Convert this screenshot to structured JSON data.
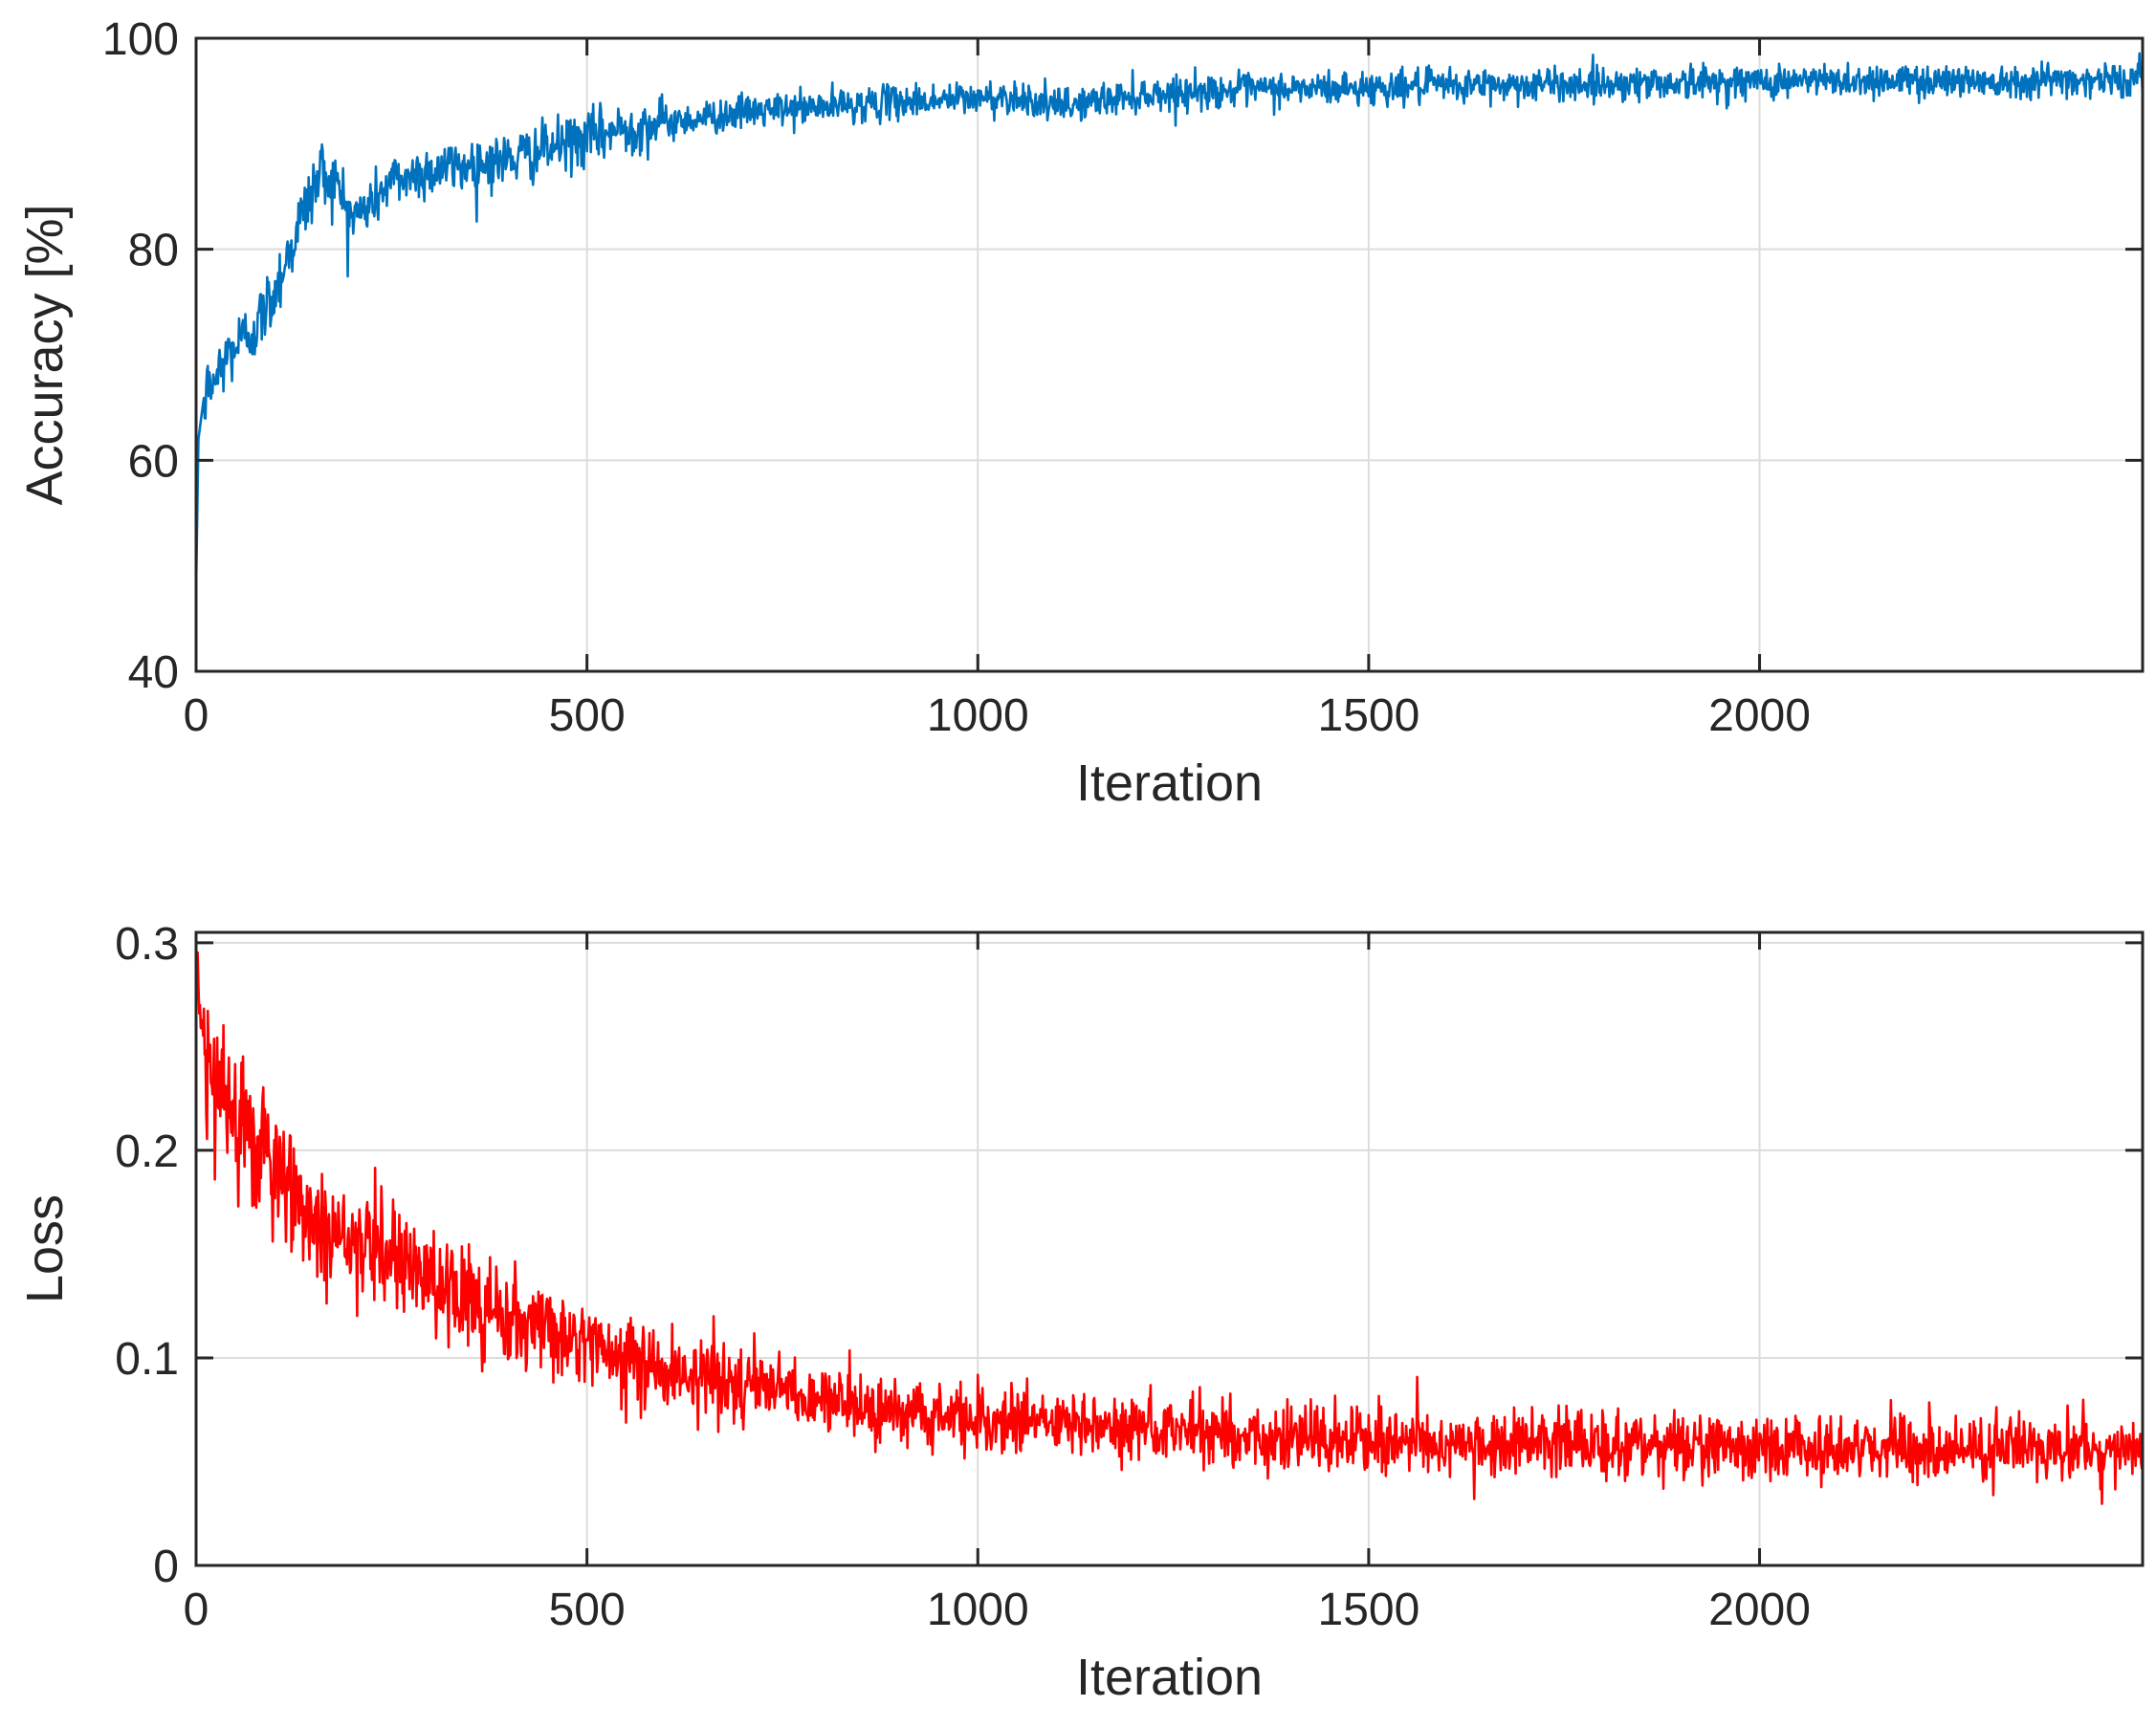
{
  "chart_data": [
    {
      "type": "line",
      "xlabel": "Iteration",
      "ylabel": "Accuracy [%]",
      "xlim": [
        0,
        2490
      ],
      "ylim": [
        40,
        100
      ],
      "xticks": [
        0,
        500,
        1000,
        1500,
        2000
      ],
      "yticks": [
        40,
        60,
        80,
        100
      ],
      "grid": true,
      "series": [
        {
          "color": "#0072BD",
          "x": [
            0,
            3,
            10,
            20,
            40,
            60,
            80,
            100,
            120,
            140,
            160,
            180,
            200,
            220,
            250,
            300,
            350,
            400,
            450,
            500,
            550,
            600,
            650,
            700,
            800,
            900,
            1000,
            1050,
            1100,
            1200,
            1300,
            1400,
            1500,
            1600,
            1700,
            1800,
            1900,
            2000,
            2100,
            2200,
            2300,
            2400,
            2490
          ],
          "values": [
            48,
            62,
            66,
            67,
            70,
            71.5,
            73,
            76,
            80,
            84,
            87.5,
            86,
            83,
            84,
            86.5,
            87.5,
            88,
            88.5,
            89.5,
            90.5,
            91.5,
            92,
            92.5,
            93,
            93.5,
            94,
            94.3,
            94.5,
            93.5,
            94.6,
            95,
            95.2,
            95.3,
            95.5,
            95.6,
            95.7,
            95.8,
            95.9,
            96,
            96,
            96,
            96.1,
            96
          ]
        }
      ]
    },
    {
      "type": "line",
      "xlabel": "Iteration",
      "ylabel": "Loss",
      "xlim": [
        0,
        2490
      ],
      "ylim": [
        0,
        0.305
      ],
      "xticks": [
        0,
        500,
        1000,
        1500,
        2000
      ],
      "yticks": [
        0,
        0.1,
        0.2,
        0.3
      ],
      "ytick_labels": [
        "0",
        "0.1",
        "0.2",
        "0.3"
      ],
      "grid": true,
      "series": [
        {
          "color": "#FF0000",
          "x": [
            0,
            5,
            20,
            50,
            80,
            100,
            130,
            160,
            200,
            250,
            300,
            350,
            400,
            450,
            500,
            550,
            600,
            650,
            700,
            800,
            900,
            1000,
            1100,
            1200,
            1300,
            1400,
            1500,
            1600,
            1700,
            1800,
            1900,
            2000,
            2100,
            2200,
            2300,
            2400,
            2490
          ],
          "values": [
            0.3,
            0.25,
            0.235,
            0.22,
            0.205,
            0.19,
            0.175,
            0.165,
            0.16,
            0.15,
            0.135,
            0.127,
            0.12,
            0.113,
            0.106,
            0.1,
            0.096,
            0.092,
            0.088,
            0.08,
            0.075,
            0.071,
            0.068,
            0.066,
            0.064,
            0.062,
            0.061,
            0.06,
            0.059,
            0.058,
            0.058,
            0.057,
            0.056,
            0.056,
            0.056,
            0.055,
            0.055
          ]
        }
      ]
    }
  ]
}
